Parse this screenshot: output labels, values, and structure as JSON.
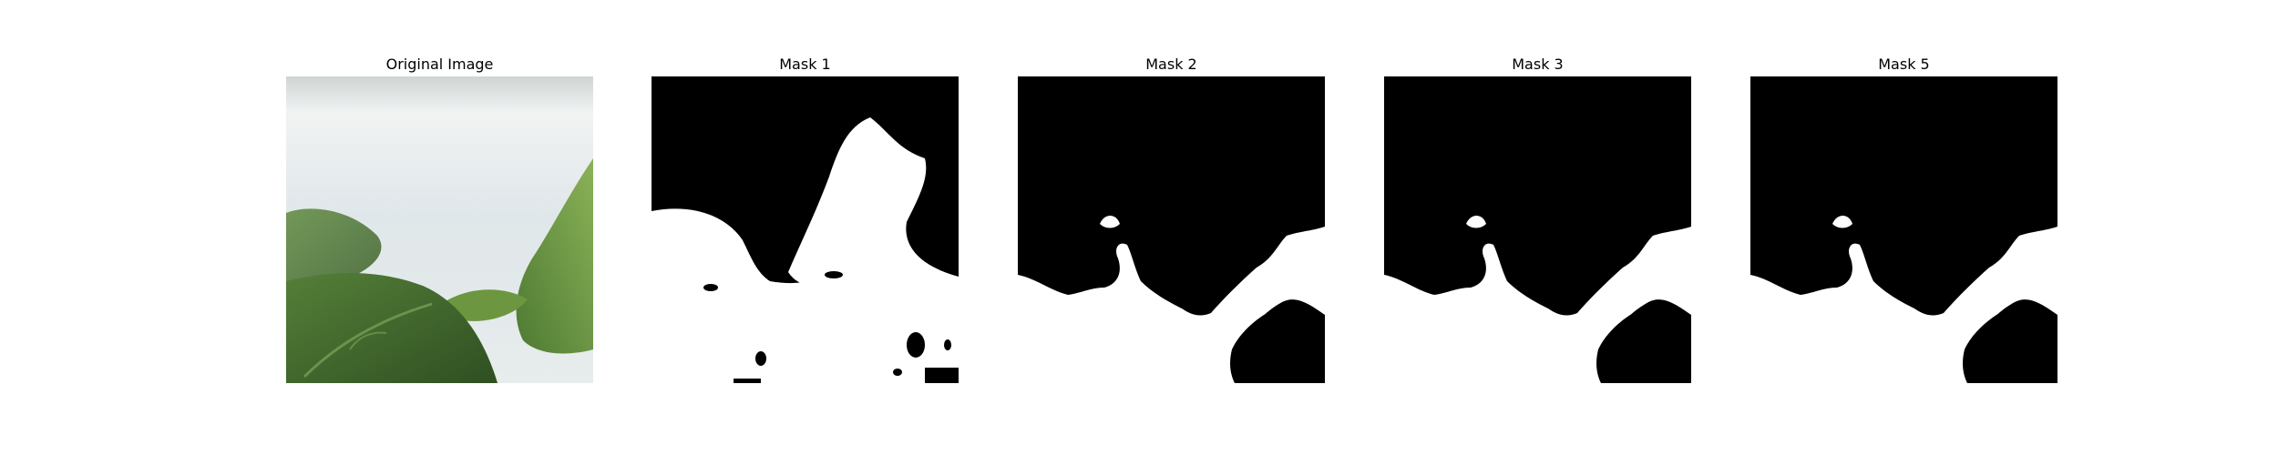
{
  "figure": {
    "panels": [
      {
        "title": "Original Image",
        "kind": "photo",
        "subject": "green leaves against a pale blurred background"
      },
      {
        "title": "Mask 1",
        "kind": "binary-mask"
      },
      {
        "title": "Mask 2",
        "kind": "binary-mask"
      },
      {
        "title": "Mask 3",
        "kind": "binary-mask"
      },
      {
        "title": "Mask 5",
        "kind": "binary-mask"
      }
    ]
  },
  "colors": {
    "background": "#ffffff",
    "mask_foreground": "#ffffff",
    "mask_background": "#000000",
    "leaf_dark": "#3f6a2c",
    "leaf_light": "#7aa24a",
    "photo_background": "#dfe7ea"
  }
}
